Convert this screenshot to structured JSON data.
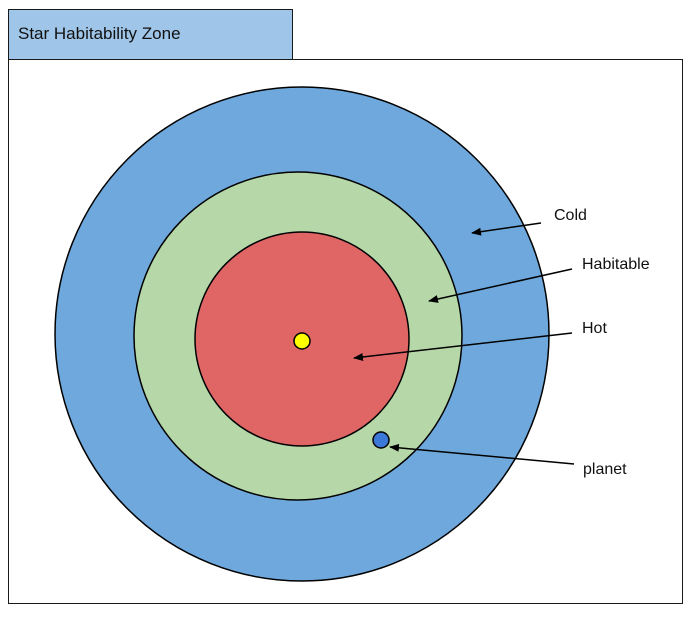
{
  "header": {
    "title": "Star Habitability Zone"
  },
  "diagram": {
    "zones": [
      {
        "id": "cold",
        "label": "Cold",
        "color": "#6fa8dc"
      },
      {
        "id": "habitable",
        "label": "Habitable",
        "color": "#b6d7a8"
      },
      {
        "id": "hot",
        "label": "Hot",
        "color": "#e06666"
      }
    ],
    "star": {
      "color": "#ffff00"
    },
    "planet": {
      "label": "planet",
      "color": "#3c78d8"
    }
  }
}
